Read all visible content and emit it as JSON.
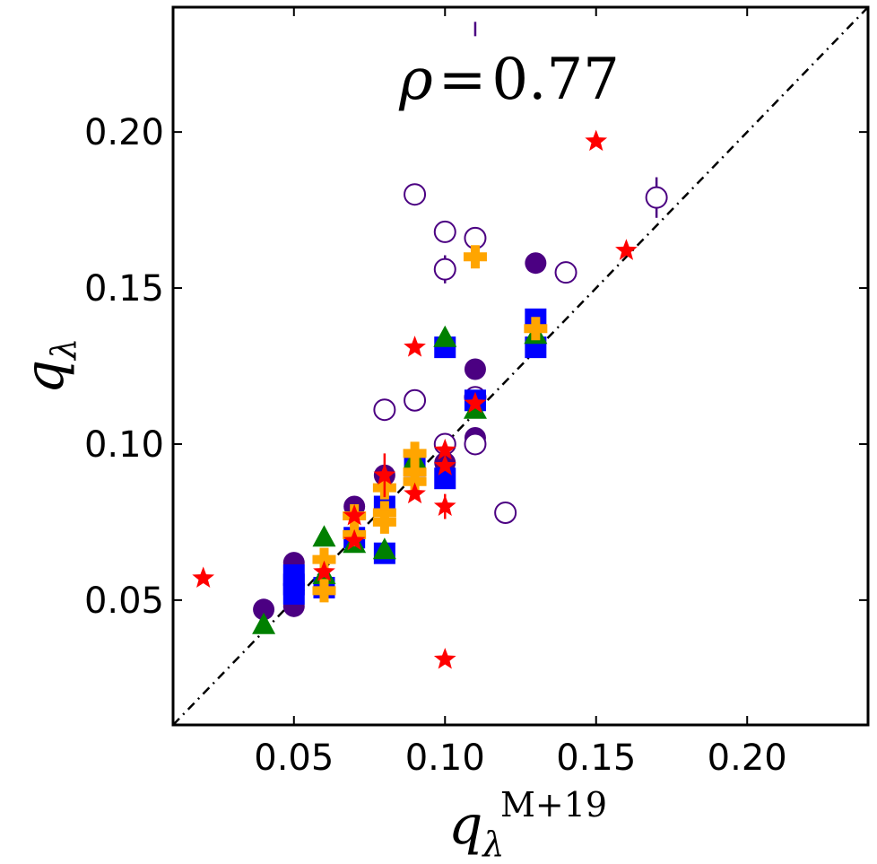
{
  "chart_data": {
    "type": "scatter",
    "title": "",
    "xlabel": {
      "base": "q",
      "sub": "λ",
      "sup": "M+19"
    },
    "ylabel": {
      "base": "q",
      "sub": "λ"
    },
    "annotation": {
      "symbol": "ρ",
      "eq": "=",
      "value": "0.77"
    },
    "xlim": [
      0.01,
      0.24
    ],
    "ylim": [
      0.01,
      0.24
    ],
    "xticks": [
      0.05,
      0.1,
      0.15,
      0.2
    ],
    "yticks": [
      0.05,
      0.1,
      0.15,
      0.2
    ],
    "xtick_labels": [
      "0.05",
      "0.10",
      "0.15",
      "0.20"
    ],
    "ytick_labels": [
      "0.05",
      "0.10",
      "0.15",
      "0.20"
    ],
    "reference_line": {
      "style": "dash-dot",
      "slope": 1,
      "intercept": 0
    },
    "series": [
      {
        "name": "filled-circle",
        "marker": "circle-filled",
        "color": "#4b0082",
        "points": [
          [
            0.04,
            0.047
          ],
          [
            0.05,
            0.048
          ],
          [
            0.05,
            0.055
          ],
          [
            0.05,
            0.062
          ],
          [
            0.07,
            0.08
          ],
          [
            0.08,
            0.09
          ],
          [
            0.1,
            0.094
          ],
          [
            0.11,
            0.124
          ],
          [
            0.11,
            0.102
          ],
          [
            0.13,
            0.158
          ]
        ]
      },
      {
        "name": "open-circle",
        "marker": "circle-open",
        "color": "#4b0082",
        "points": [
          [
            0.09,
            0.18
          ],
          [
            0.1,
            0.168
          ],
          [
            0.1,
            0.156
          ],
          [
            0.11,
            0.166
          ],
          [
            0.14,
            0.155
          ],
          [
            0.17,
            0.179
          ],
          [
            0.08,
            0.111
          ],
          [
            0.09,
            0.114
          ],
          [
            0.1,
            0.1
          ],
          [
            0.11,
            0.115
          ],
          [
            0.11,
            0.1
          ],
          [
            0.12,
            0.078
          ]
        ],
        "errors": [
          0,
          0,
          0.0045,
          0,
          0.0035,
          0.0065,
          0,
          0,
          0,
          0,
          0,
          0.003
        ],
        "offscale_marks": [
          [
            0.11,
            0.233
          ]
        ]
      },
      {
        "name": "square",
        "marker": "square",
        "color": "#0000ff",
        "points": [
          [
            0.05,
            0.052
          ],
          [
            0.05,
            0.055
          ],
          [
            0.05,
            0.058
          ],
          [
            0.06,
            0.054
          ],
          [
            0.07,
            0.07
          ],
          [
            0.08,
            0.065
          ],
          [
            0.08,
            0.08
          ],
          [
            0.09,
            0.093
          ],
          [
            0.1,
            0.089
          ],
          [
            0.1,
            0.131
          ],
          [
            0.11,
            0.114
          ],
          [
            0.13,
            0.14
          ],
          [
            0.13,
            0.131
          ]
        ]
      },
      {
        "name": "triangle",
        "marker": "triangle-up",
        "color": "#008000",
        "points": [
          [
            0.04,
            0.042
          ],
          [
            0.06,
            0.07
          ],
          [
            0.06,
            0.058
          ],
          [
            0.07,
            0.068
          ],
          [
            0.08,
            0.066
          ],
          [
            0.09,
            0.095
          ],
          [
            0.1,
            0.134
          ],
          [
            0.11,
            0.111
          ],
          [
            0.13,
            0.135
          ]
        ]
      },
      {
        "name": "plus",
        "marker": "plus",
        "color": "#ffa500",
        "points": [
          [
            0.06,
            0.053
          ],
          [
            0.06,
            0.063
          ],
          [
            0.07,
            0.077
          ],
          [
            0.07,
            0.071
          ],
          [
            0.08,
            0.086
          ],
          [
            0.08,
            0.078
          ],
          [
            0.08,
            0.075
          ],
          [
            0.09,
            0.097
          ],
          [
            0.09,
            0.091
          ],
          [
            0.09,
            0.088
          ],
          [
            0.11,
            0.16
          ],
          [
            0.13,
            0.137
          ]
        ]
      },
      {
        "name": "star",
        "marker": "star",
        "color": "#ff0000",
        "points": [
          [
            0.02,
            0.057
          ],
          [
            0.06,
            0.059
          ],
          [
            0.07,
            0.077
          ],
          [
            0.07,
            0.069
          ],
          [
            0.08,
            0.09
          ],
          [
            0.09,
            0.131
          ],
          [
            0.09,
            0.084
          ],
          [
            0.1,
            0.098
          ],
          [
            0.1,
            0.093
          ],
          [
            0.1,
            0.08
          ],
          [
            0.1,
            0.031
          ],
          [
            0.11,
            0.113
          ],
          [
            0.15,
            0.197
          ],
          [
            0.16,
            0.162
          ]
        ],
        "errors": [
          0,
          0,
          0,
          0,
          0.007,
          0,
          0,
          0,
          0,
          0.004,
          0,
          0,
          0,
          0
        ]
      }
    ]
  }
}
